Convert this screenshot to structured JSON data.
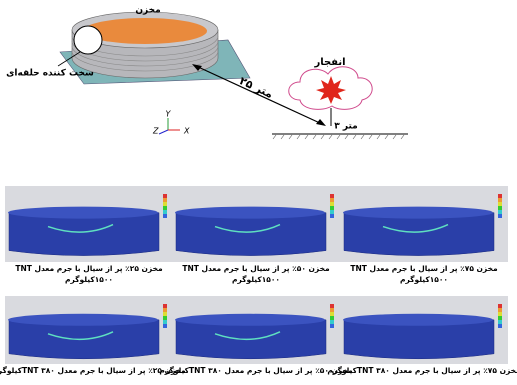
{
  "figure": {
    "tank_label": "مخزن",
    "stiffener_label": "سخت کننده حلقه‌ای",
    "distance_label": "۲۵ متر",
    "explosion_label": "انفجار",
    "height_label": "۳ متر",
    "axes": {
      "x": "X",
      "y": "Y",
      "z": "Z"
    }
  },
  "panels": [
    {
      "caption": [
        "مخزن ۲۵٪ پر از سیال با جرم معدل TNT",
        "۱۵۰۰کیلوگرم"
      ]
    },
    {
      "caption": [
        "مخزن ۵۰٪ پر از سیال با جرم معدل TNT",
        "۱۵۰۰کیلوگرم"
      ]
    },
    {
      "caption": [
        "مخزن ۷۵٪ پر از سیال با جرم معدل TNT",
        "۱۵۰۰کیلوگرم"
      ]
    },
    {
      "caption": [
        "مخزن ۲۵٪ پر از سیال با جرم معدل TNT ۳۸۰کیلوگرم"
      ]
    },
    {
      "caption": [
        "مخزن ۵۰٪ پر از سیال با جرم معدل TNT ۳۸۰کیلوگرم"
      ]
    },
    {
      "caption": [
        "مخزن ۷۵٪ پر از سیال با جرم معدل TNT ۳۸۰کیلوگرم"
      ]
    }
  ]
}
